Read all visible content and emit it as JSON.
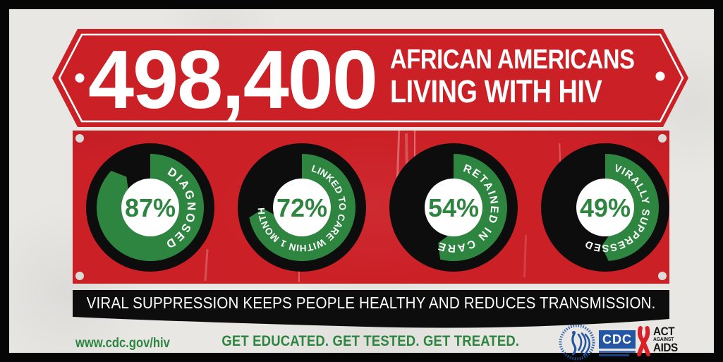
{
  "colors": {
    "red": "#cb2026",
    "green": "#2e8540",
    "dark": "#0d0d0d",
    "bg": "#e8e7e4",
    "white": "#ffffff",
    "logo_blue": "#2456a4",
    "ribbon_red": "#da1f26",
    "rivet": "#dcdbd7"
  },
  "banner": {
    "number": "498,400",
    "line1": "AFRICAN AMERICANS",
    "line2": "LIVING WITH HIV"
  },
  "donuts": [
    {
      "pct": 87,
      "value": "87%",
      "label": "DIAGNOSED",
      "label_size": 16.5,
      "label_tracking": 2.5,
      "label_start_deg": 26
    },
    {
      "pct": 72,
      "value": "72%",
      "label": "LINKED TO CARE WITHIN 1 MONTH",
      "label_size": 13.5,
      "label_tracking": 0.2,
      "label_start_deg": 14
    },
    {
      "pct": 54,
      "value": "54%",
      "label": "RETAINED IN CARE",
      "label_size": 15.5,
      "label_tracking": 1.8,
      "label_start_deg": 14
    },
    {
      "pct": 49,
      "value": "49%",
      "label": "VIRALLY SUPPRESSED",
      "label_size": 14.5,
      "label_tracking": 1.0,
      "label_start_deg": 13
    }
  ],
  "ribbon_text": "VIRAL SUPPRESSION KEEPS PEOPLE HEALTHY AND REDUCES TRANSMISSION.",
  "footer": {
    "url": "www.cdc.gov/hiv",
    "tagline": "GET EDUCATED. GET TESTED. GET TREATED.",
    "cdc_logo_text": "CDC",
    "act_logo": {
      "line1": "ACT",
      "line2": "AGAINST",
      "line3": "AIDS"
    }
  },
  "chart_data": {
    "type": "pie",
    "title": "498,400 African Americans Living with HIV",
    "categories": [
      "Diagnosed",
      "Linked to Care Within 1 Month",
      "Retained in Care",
      "Virally Suppressed"
    ],
    "values": [
      87,
      72,
      54,
      49
    ],
    "unit": "%",
    "legend_position": "labels curved on each donut arc",
    "style": "four black donut charts with green arcs starting at 12 o'clock, percent value in white center"
  }
}
